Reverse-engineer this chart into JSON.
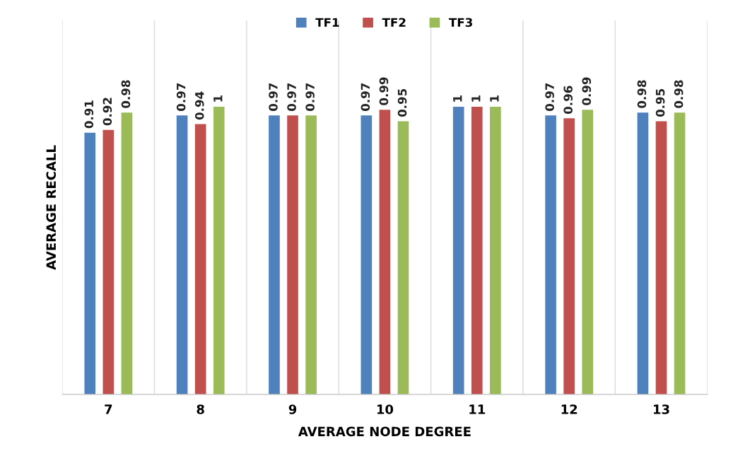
{
  "chart_data": {
    "type": "bar",
    "xlabel": "AVERAGE NODE DEGREE",
    "ylabel": "AVERAGE RECALL",
    "categories": [
      "7",
      "8",
      "9",
      "10",
      "11",
      "12",
      "13"
    ],
    "series": [
      {
        "name": "TF1",
        "color": "#4f81bd",
        "values": [
          0.91,
          0.97,
          0.97,
          0.97,
          1,
          0.97,
          0.98
        ]
      },
      {
        "name": "TF2",
        "color": "#c0504d",
        "values": [
          0.92,
          0.94,
          0.97,
          0.99,
          1,
          0.96,
          0.95
        ]
      },
      {
        "name": "TF3",
        "color": "#9bbb59",
        "values": [
          0.98,
          1,
          0.97,
          0.95,
          1,
          0.99,
          0.98
        ]
      }
    ],
    "relative": false,
    "data_labels": true,
    "grid": "x",
    "legend": "top"
  }
}
